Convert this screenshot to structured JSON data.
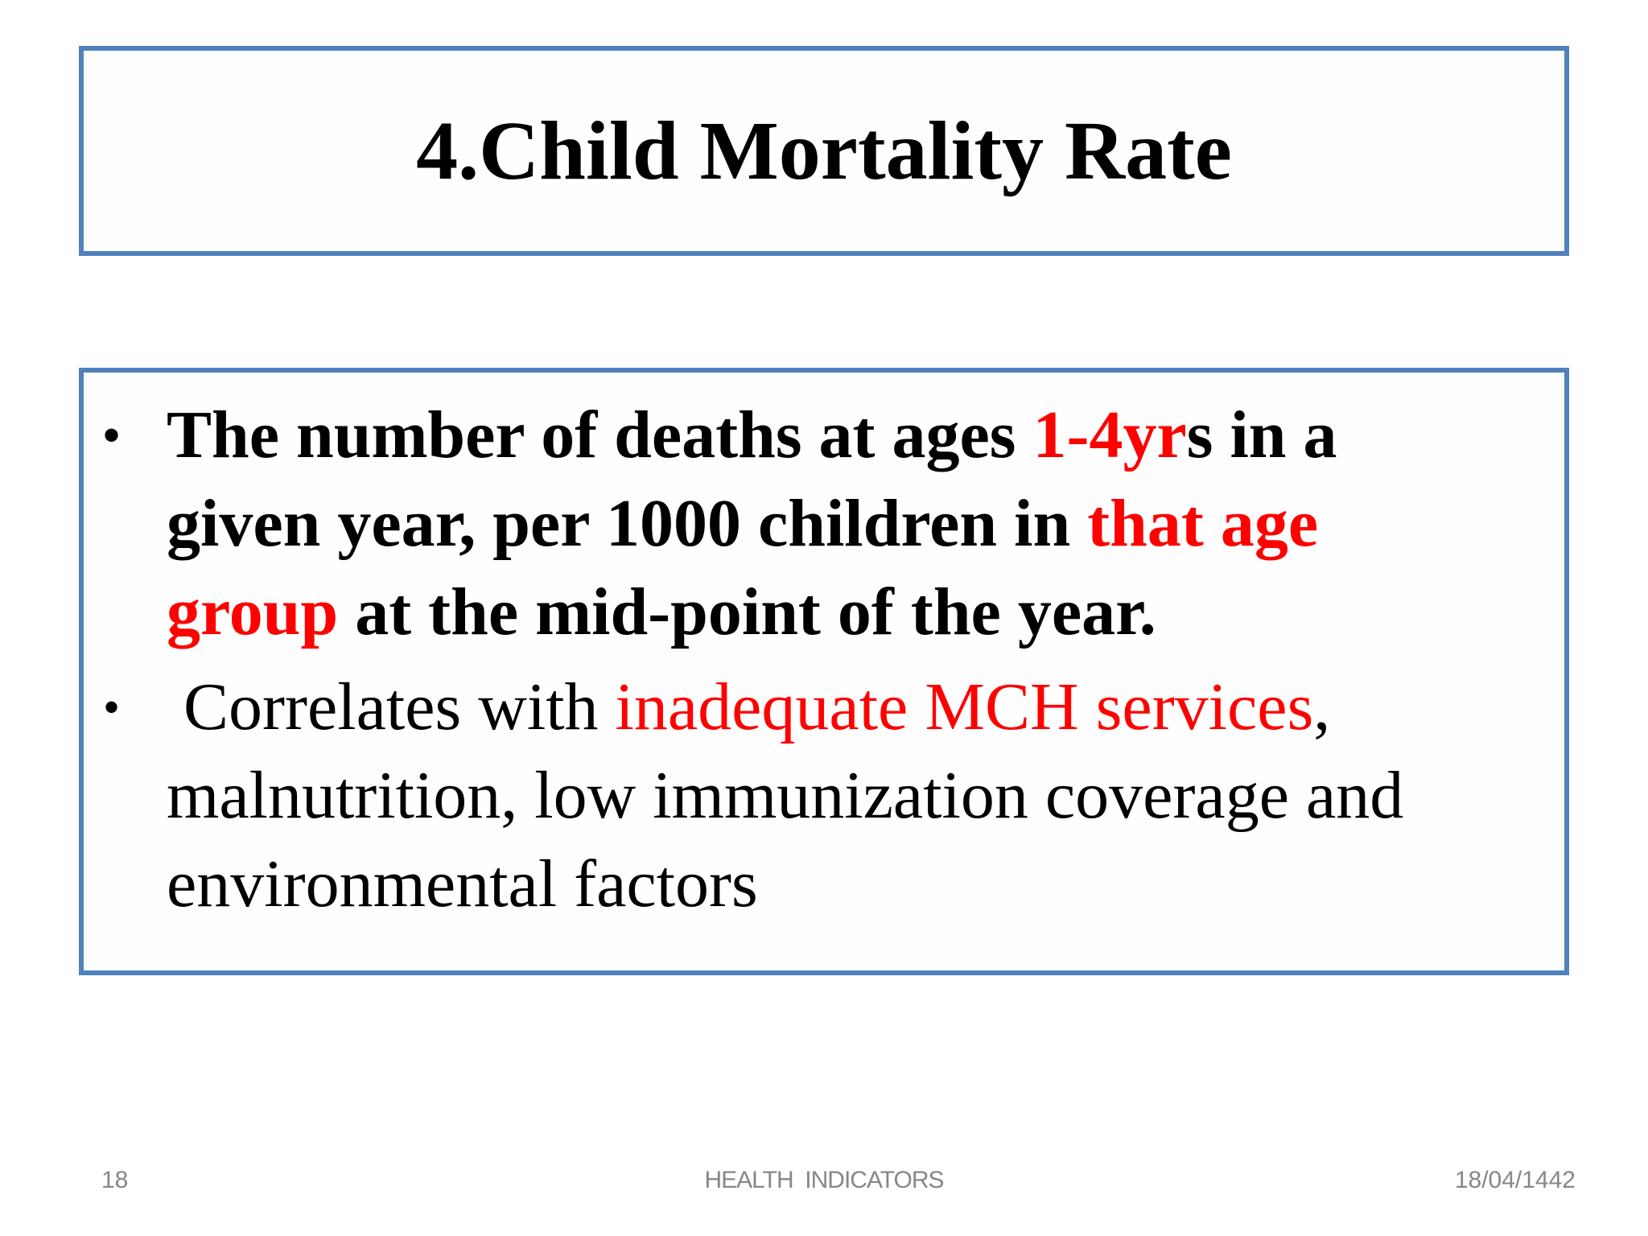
{
  "slide": {
    "background": "#ffffff",
    "title": {
      "text": "4.Child Mortality Rate"
    },
    "body": {
      "bullet_marker": "•",
      "bullets": [
        {
          "bold": true,
          "segments": [
            {
              "text": "The number of deaths at ages ",
              "color": "black"
            },
            {
              "text": "1-4yr",
              "color": "red"
            },
            {
              "text": "s in a\ngiven year, per 1000 children in ",
              "color": "black"
            },
            {
              "text": "that age\ngroup",
              "color": "red"
            },
            {
              "text": " at the mid-point of the year.",
              "color": "black"
            }
          ]
        },
        {
          "bold": false,
          "segments": [
            {
              "text": " Correlates with ",
              "color": "black"
            },
            {
              "text": "inadequate MCH services",
              "color": "red"
            },
            {
              "text": ",\nmalnutrition, low immunization coverage and\nenvironmental factors",
              "color": "black"
            }
          ]
        }
      ]
    },
    "footer": {
      "page_number": "18",
      "center_text": "HEALTH  INDICATORS",
      "date": "18/04/1442"
    },
    "colors": {
      "accent_border": "#4f81bd",
      "red": "#ff0000",
      "black": "#000000",
      "footer_gray": "#878787"
    }
  }
}
